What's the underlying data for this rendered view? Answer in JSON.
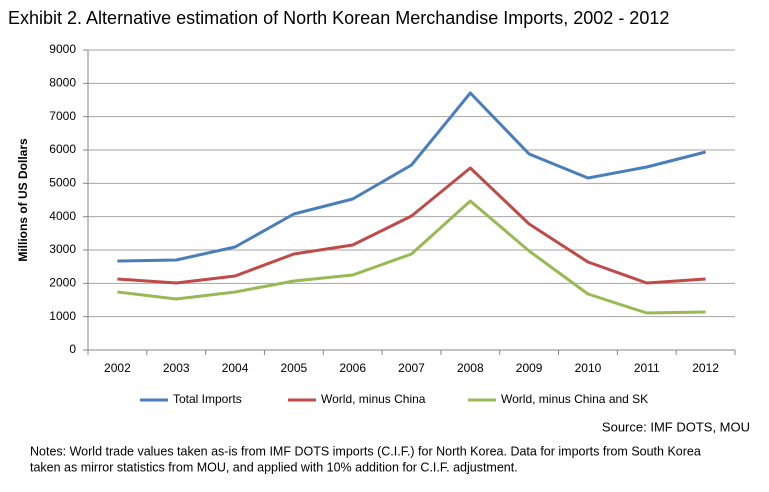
{
  "chart_data": {
    "type": "line",
    "title": "Exhibit 2. Alternative estimation of North Korean Merchandise Imports, 2002 - 2012",
    "y_label": "Millions of US Dollars",
    "categories": [
      "2002",
      "2003",
      "2004",
      "2005",
      "2006",
      "2007",
      "2008",
      "2009",
      "2010",
      "2011",
      "2012"
    ],
    "series": [
      {
        "name": "Total Imports",
        "color": "#4a7ebb",
        "values": [
          2670,
          2700,
          3090,
          4080,
          4530,
          5550,
          7710,
          5880,
          5160,
          5490,
          5940
        ]
      },
      {
        "name": "World, minus China",
        "color": "#be4b48",
        "values": [
          2130,
          2010,
          2220,
          2880,
          3150,
          4020,
          5460,
          3780,
          2640,
          2010,
          2130
        ]
      },
      {
        "name": "World, minus China and SK",
        "color": "#98b954",
        "values": [
          1740,
          1530,
          1740,
          2070,
          2250,
          2880,
          4470,
          2970,
          1680,
          1110,
          1140
        ]
      }
    ],
    "ylim": [
      0,
      9000
    ],
    "yticks": [
      0,
      1000,
      2000,
      3000,
      4000,
      5000,
      6000,
      7000,
      8000,
      9000
    ],
    "grid": true,
    "legend": "bottom",
    "source": "Source:  IMF DOTS, MOU",
    "notes": [
      "Notes: World trade values taken as-is from IMF DOTS imports (C.I.F.) for North Korea. Data for imports from South Korea",
      "taken as mirror statistics from MOU, and applied with 10% addition for C.I.F. adjustment."
    ]
  }
}
